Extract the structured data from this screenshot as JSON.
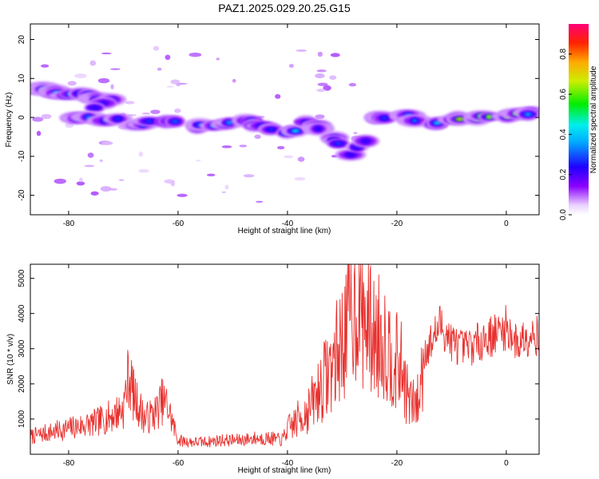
{
  "title": "PAZ1.2025.029.20.25.G15",
  "chart_data": [
    {
      "type": "heatmap",
      "xlabel": "Height of straight line (km)",
      "ylabel": "Frequency (Hz)",
      "xlim": [
        -87,
        6
      ],
      "ylim": [
        -25,
        24
      ],
      "xticks": [
        "-80",
        "-60",
        "-40",
        "-20",
        "0"
      ],
      "xtick_values": [
        -80,
        -60,
        -40,
        -20,
        0
      ],
      "yticks": [
        "20",
        "10",
        "0",
        "-10",
        "-20"
      ],
      "ytick_values": [
        20,
        10,
        0,
        -10,
        -20
      ],
      "colorbar": {
        "label": "Normalized spectral amplitude",
        "range": [
          0,
          0.95
        ],
        "ticks": [
          "0.0",
          "0.2",
          "0.4",
          "0.6",
          "0.8"
        ],
        "tick_values": [
          0,
          0.2,
          0.4,
          0.6,
          0.8
        ],
        "colormap": "rainbow: white, light violet, purple, blue, cyan, green, yellow, orange, red, magenta"
      },
      "ridge": [
        {
          "x": -86,
          "f": 7.5,
          "a": 0.45
        },
        {
          "x": -83,
          "f": 6.5,
          "a": 0.45
        },
        {
          "x": -80,
          "f": 5.5,
          "a": 0.4
        },
        {
          "x": -76,
          "f": 5.5,
          "a": 0.3
        },
        {
          "x": -72,
          "f": 4.5,
          "a": 0.25
        },
        {
          "x": -79,
          "f": 0,
          "a": 0.35
        },
        {
          "x": -74,
          "f": -0.5,
          "a": 0.3
        },
        {
          "x": -68,
          "f": -1.5,
          "a": 0.3
        },
        {
          "x": -62,
          "f": -1,
          "a": 0.35
        },
        {
          "x": -57,
          "f": -2,
          "a": 0.35
        },
        {
          "x": -53,
          "f": -2.5,
          "a": 0.4
        },
        {
          "x": -48,
          "f": -1,
          "a": 0.3
        },
        {
          "x": -44,
          "f": -2.5,
          "a": 0.3
        },
        {
          "x": -40,
          "f": -4.5,
          "a": 0.45
        },
        {
          "x": -36,
          "f": -1.5,
          "a": 0.25
        },
        {
          "x": -32,
          "f": -5,
          "a": 0.3
        },
        {
          "x": -28,
          "f": -9,
          "a": 0.25
        },
        {
          "x": -24,
          "f": -0.5,
          "a": 0.3
        },
        {
          "x": -19,
          "f": 0.5,
          "a": 0.35
        },
        {
          "x": -14,
          "f": -1.5,
          "a": 0.45
        },
        {
          "x": -10,
          "f": 0,
          "a": 0.75
        },
        {
          "x": -5,
          "f": 0,
          "a": 0.7
        },
        {
          "x": 0,
          "f": 0.5,
          "a": 0.7
        },
        {
          "x": 4,
          "f": 1,
          "a": 0.4
        }
      ]
    },
    {
      "type": "line",
      "xlabel": "Height of straight line (km)",
      "ylabel": "SNR (10 * v/v)",
      "xlim": [
        -87,
        6
      ],
      "ylim": [
        0,
        5400
      ],
      "xticks": [
        "-80",
        "-60",
        "-40",
        "-20",
        "0"
      ],
      "xtick_values": [
        -80,
        -60,
        -40,
        -20,
        0
      ],
      "yticks": [
        "1000",
        "2000",
        "3000",
        "4000",
        "5000"
      ],
      "ytick_values": [
        1000,
        2000,
        3000,
        4000,
        5000
      ],
      "series": [
        {
          "color": "#e8312e",
          "x": [
            -87,
            -84,
            -81,
            -78,
            -75,
            -72,
            -70,
            -69,
            -68,
            -66,
            -64,
            -63,
            -62,
            -60,
            -58,
            -55,
            -52,
            -49,
            -46,
            -43,
            -41,
            -40,
            -38,
            -36,
            -34,
            -32,
            -30,
            -29,
            -28,
            -27,
            -26,
            -25,
            -24,
            -23,
            -22,
            -21,
            -20,
            -19,
            -18,
            -17,
            -16,
            -15,
            -14,
            -13,
            -12,
            -10,
            -8,
            -6,
            -4,
            -2,
            0,
            1,
            2,
            3,
            4,
            5,
            6
          ],
          "y": [
            500,
            600,
            700,
            800,
            900,
            1100,
            1300,
            2300,
            1600,
            1000,
            1200,
            1500,
            1400,
            400,
            350,
            350,
            400,
            400,
            450,
            450,
            400,
            700,
            1000,
            1300,
            1900,
            2500,
            3200,
            3800,
            4200,
            4500,
            3900,
            3600,
            3300,
            3400,
            3200,
            2800,
            2600,
            2400,
            1600,
            1400,
            1500,
            2900,
            3100,
            3400,
            3700,
            3200,
            3000,
            3100,
            3300,
            3400,
            3600,
            3400,
            3100,
            3300,
            3400,
            3500,
            3300
          ]
        }
      ]
    }
  ],
  "colors": {
    "line": "#e8312e",
    "background": "#ffffff"
  }
}
